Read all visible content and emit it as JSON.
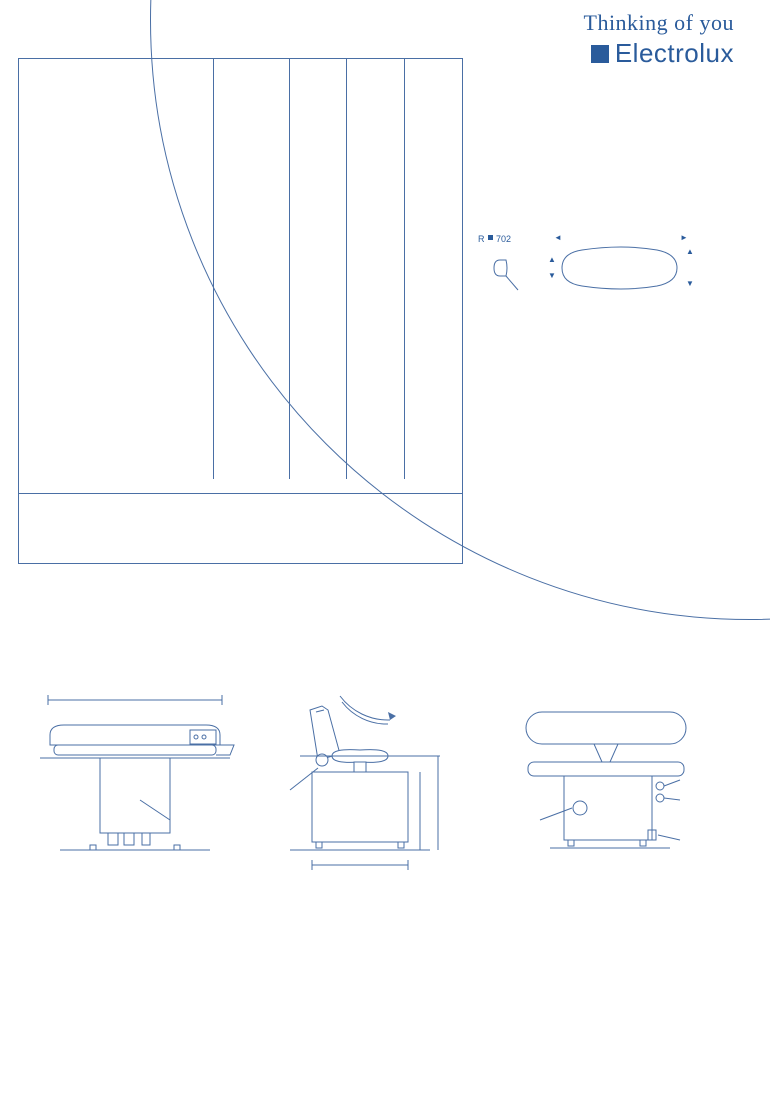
{
  "brand": {
    "tagline": "Thinking of you",
    "name": "Electrolux",
    "logo_color": "#2a5b9b"
  },
  "colors": {
    "line": "#4a6fa5",
    "text": "#2a5b9b",
    "background": "#ffffff"
  },
  "spec_table": {
    "col_widths_pct": [
      44,
      17,
      13,
      13,
      13
    ],
    "header": [
      "",
      "",
      "",
      "",
      ""
    ],
    "rows": [
      [
        "",
        "",
        "",
        "",
        ""
      ],
      [
        "",
        "",
        "",
        "",
        ""
      ],
      [
        "",
        "",
        "",
        "",
        ""
      ],
      [
        "",
        "",
        "",
        "",
        ""
      ],
      [
        "",
        "",
        "",
        "",
        ""
      ],
      [
        "",
        "",
        "",
        "",
        ""
      ],
      [
        "",
        "",
        "",
        "",
        ""
      ],
      [
        "",
        "",
        "",
        "",
        ""
      ],
      [
        "",
        "",
        "",
        "",
        ""
      ],
      [
        "",
        "",
        "",
        "",
        ""
      ],
      [
        "",
        "",
        "",
        "",
        ""
      ],
      [
        "",
        "",
        "",
        "",
        ""
      ],
      [
        "",
        "",
        "",
        "",
        ""
      ],
      [
        "",
        "",
        "",
        "",
        ""
      ],
      [
        "",
        "",
        "",
        "",
        ""
      ],
      [
        "",
        "",
        "",
        "",
        ""
      ],
      [
        "",
        "",
        "",
        "",
        ""
      ],
      [
        "",
        "",
        "",
        "",
        ""
      ],
      [
        "",
        "",
        "",
        "",
        ""
      ],
      [
        "",
        "",
        "",
        "",
        ""
      ],
      [
        "",
        "",
        "",
        "",
        ""
      ],
      [
        "",
        "",
        "",
        "",
        ""
      ],
      [
        "",
        "",
        "",
        "",
        ""
      ],
      [
        "",
        "",
        "",
        "",
        ""
      ],
      [
        "",
        "",
        "",
        "",
        ""
      ],
      [
        "",
        "",
        "",
        "",
        ""
      ],
      [
        "",
        "",
        "",
        "",
        ""
      ],
      [
        "",
        "",
        "",
        "",
        ""
      ],
      [
        "",
        "",
        "",
        "",
        ""
      ],
      [
        "",
        "",
        "",
        "",
        ""
      ]
    ],
    "footer_rows": [
      [
        "",
        "",
        "",
        "",
        ""
      ],
      [
        "",
        "",
        "",
        "",
        ""
      ],
      [
        "",
        "",
        "",
        "",
        ""
      ],
      [
        "",
        "",
        "",
        "",
        ""
      ],
      [
        "",
        "",
        "",
        "",
        ""
      ]
    ]
  },
  "plate_shape": {
    "radius_label": "R",
    "radius_value": "702",
    "arrows": {
      "left": "◄",
      "right": "►",
      "up": "▲",
      "down": "▼"
    }
  },
  "drawings": {
    "front": {
      "label": "",
      "dims": [
        "",
        "",
        ""
      ]
    },
    "side": {
      "label": "",
      "dims": [
        "",
        "",
        "",
        ""
      ]
    },
    "rear": {
      "label": "",
      "dims": [
        "",
        "",
        ""
      ]
    }
  }
}
